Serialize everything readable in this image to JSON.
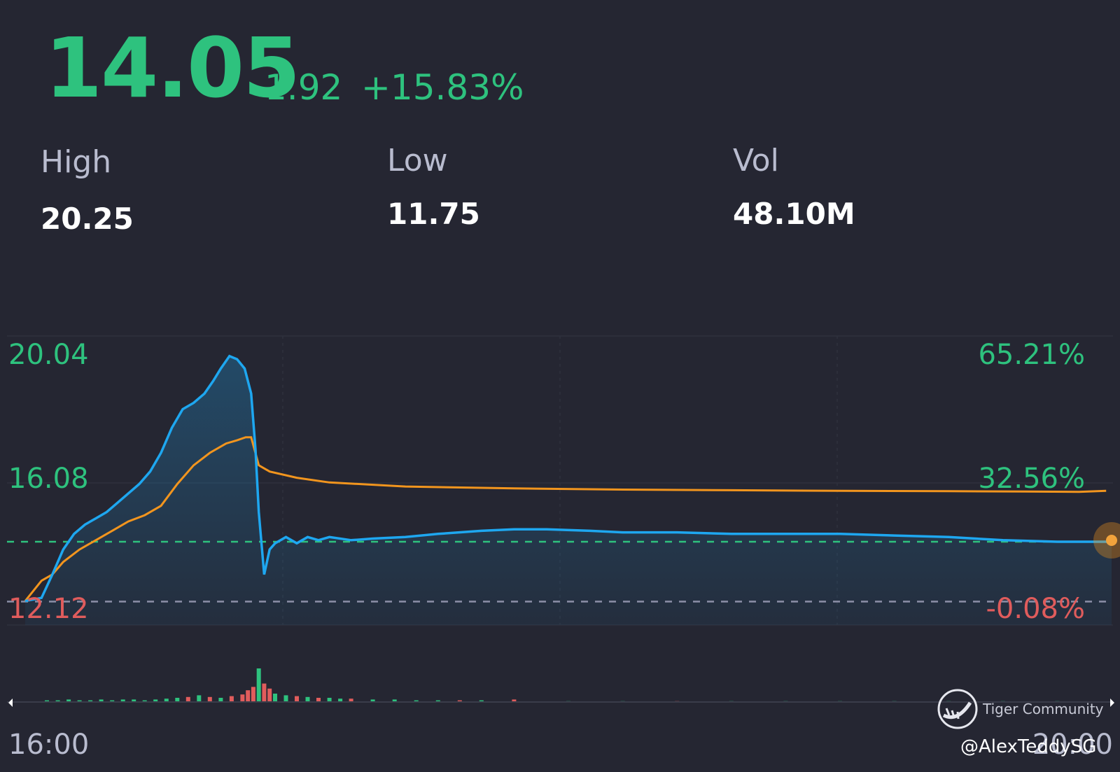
{
  "quote": {
    "price": "14.05",
    "change": "1.92",
    "change_pct": "+15.83%",
    "high_label": "High",
    "high_value": "20.25",
    "low_label": "Low",
    "low_value": "11.75",
    "vol_label": "Vol",
    "vol_value": "48.10M"
  },
  "colors": {
    "background": "#252632",
    "up": "#2ec27e",
    "down": "#e05c5c",
    "price_line": "#1ea7f0",
    "avg_line": "#f2951e",
    "baseline": "#8c8fa8"
  },
  "chart_data": {
    "type": "line",
    "y_left_ticks": [
      "20.04",
      "16.08",
      "12.12"
    ],
    "y_right_ticks": [
      "65.21%",
      "32.56%",
      "-0.08%"
    ],
    "x_ticks": [
      "16:00",
      "20:00"
    ],
    "ylim": [
      12.12,
      20.04
    ],
    "xlim": [
      0,
      100
    ],
    "prev_close": 12.13,
    "dashed_reference": 14.05,
    "series": [
      {
        "type": "line",
        "x": [
          0,
          1.5,
          2.5,
          3.5,
          4.5,
          5.5,
          6.5,
          7.5,
          8.5,
          9.5,
          10.5,
          11.5,
          12.5,
          13.5,
          14.5,
          15.5,
          16.5,
          17.3,
          18.0,
          18.8,
          19.5,
          20.2,
          20.8,
          21.2,
          21.5,
          22.0,
          22.5,
          23.0,
          24.0,
          25.0,
          26.0,
          27.0,
          28.0,
          30,
          32,
          35,
          38,
          42,
          45,
          48,
          52,
          55,
          60,
          65,
          70,
          75,
          80,
          85,
          90,
          95,
          98,
          100
        ],
        "values": [
          12.15,
          12.25,
          13.0,
          13.8,
          14.3,
          14.6,
          14.8,
          15.0,
          15.3,
          15.6,
          15.9,
          16.3,
          16.9,
          17.7,
          18.3,
          18.5,
          18.8,
          19.2,
          19.6,
          20.0,
          19.9,
          19.6,
          18.8,
          17.0,
          15.0,
          13.0,
          13.8,
          14.0,
          14.2,
          14.0,
          14.2,
          14.1,
          14.2,
          14.1,
          14.15,
          14.2,
          14.3,
          14.4,
          14.45,
          14.45,
          14.4,
          14.35,
          14.35,
          14.3,
          14.3,
          14.3,
          14.25,
          14.2,
          14.1,
          14.05,
          14.05,
          14.05
        ]
      },
      {
        "type": "line",
        "x": [
          0,
          1.5,
          2.5,
          3.5,
          5.0,
          6.5,
          8.0,
          9.5,
          11.0,
          12.5,
          14.0,
          15.5,
          17.0,
          18.5,
          19.5,
          20.3,
          20.8,
          21.5,
          22.5,
          25,
          28,
          35,
          45,
          55,
          65,
          75,
          85,
          92,
          97,
          99.5
        ],
        "values": [
          12.15,
          12.8,
          13.0,
          13.4,
          13.8,
          14.1,
          14.4,
          14.7,
          14.9,
          15.2,
          15.9,
          16.5,
          16.9,
          17.2,
          17.3,
          17.4,
          17.4,
          16.5,
          16.3,
          16.1,
          15.95,
          15.82,
          15.76,
          15.72,
          15.7,
          15.68,
          15.67,
          15.66,
          15.65,
          15.68
        ]
      }
    ],
    "volume": {
      "x": [
        2,
        3,
        4,
        5,
        6,
        7,
        8,
        9,
        10,
        11,
        12,
        13,
        14,
        15,
        16,
        17,
        18,
        19,
        20,
        20.5,
        21,
        21.5,
        22,
        22.5,
        23,
        24,
        25,
        26,
        27,
        28,
        29,
        30,
        32,
        34,
        36,
        38,
        40,
        42,
        45,
        50,
        55,
        60,
        65,
        70,
        75,
        80,
        85,
        90,
        95
      ],
      "values": [
        2,
        2,
        3,
        2,
        2,
        3,
        2,
        3,
        3,
        2,
        3,
        4,
        5,
        6,
        8,
        6,
        5,
        7,
        9,
        14,
        18,
        40,
        22,
        16,
        10,
        8,
        7,
        6,
        5,
        5,
        4,
        4,
        3,
        3,
        2,
        2,
        2,
        2,
        3,
        1,
        1,
        1,
        1,
        1,
        1,
        1,
        1,
        1,
        1
      ],
      "up": [
        true,
        true,
        true,
        true,
        true,
        true,
        true,
        true,
        true,
        true,
        true,
        true,
        true,
        false,
        true,
        false,
        true,
        false,
        false,
        false,
        false,
        true,
        false,
        false,
        true,
        true,
        false,
        true,
        false,
        true,
        true,
        false,
        true,
        true,
        true,
        true,
        false,
        true,
        false,
        true,
        true,
        false,
        true,
        true,
        true,
        true,
        true,
        true,
        true
      ]
    }
  },
  "watermark": {
    "brand": "Tiger Community",
    "user": "@AlexTeddySG"
  }
}
